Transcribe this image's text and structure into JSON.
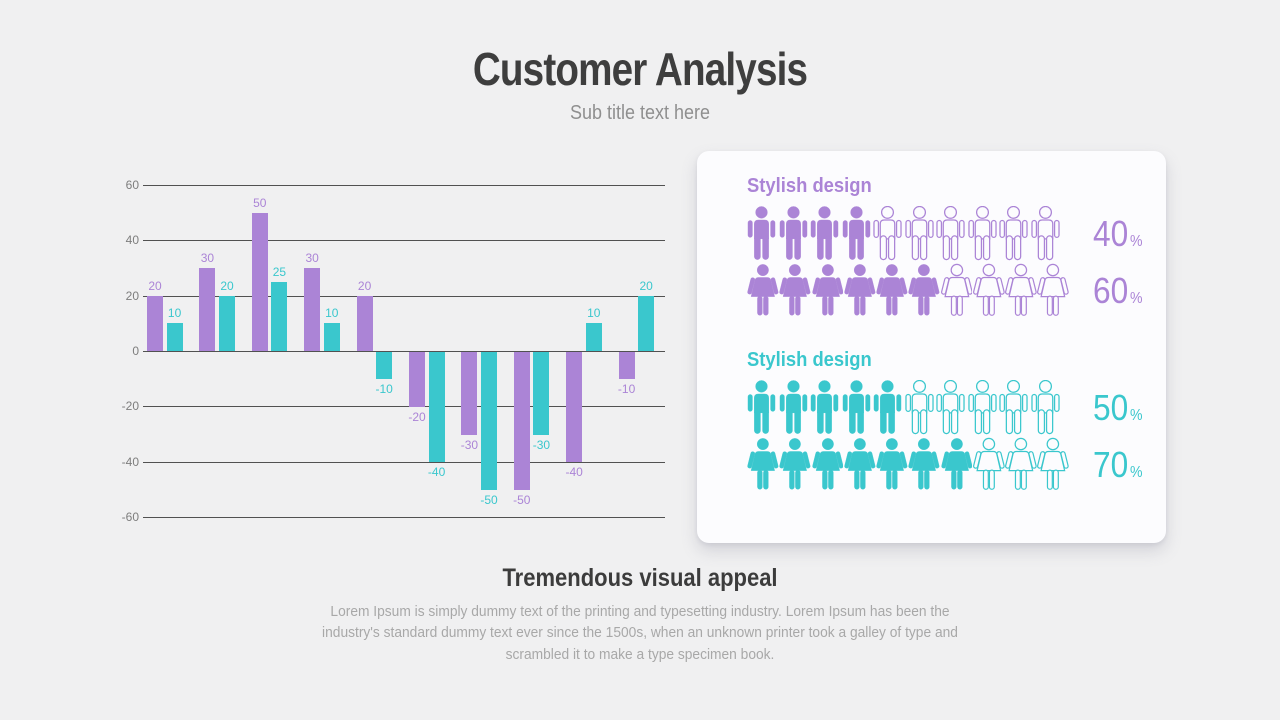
{
  "header": {
    "title": "Customer Analysis",
    "subtitle": "Sub title text here"
  },
  "colors": {
    "purple": "#ab84d6",
    "teal": "#3ac7cd",
    "gridline": "#515151",
    "tick_label": "#7d7d7d",
    "card_bg": "#fcfcfe",
    "slide_bg": "#f0f0f1",
    "title_text": "#3e3e3e",
    "subtitle_text": "#8f8f8f",
    "body_text": "#a8a8a8"
  },
  "chart_data": {
    "type": "bar",
    "title": "",
    "xlabel": "",
    "ylabel": "",
    "ylim": [
      -60,
      60
    ],
    "yticks": [
      60,
      40,
      20,
      0,
      -20,
      -40,
      -60
    ],
    "grid": true,
    "value_labels": true,
    "legend_position": "none",
    "layout": "interleaved-pairs",
    "series": [
      {
        "name": "series-purple",
        "color": "#ab84d6",
        "values": [
          20,
          30,
          50,
          30,
          20,
          -20,
          -30,
          -50,
          -40,
          -10
        ]
      },
      {
        "name": "series-teal",
        "color": "#3ac7cd",
        "values": [
          10,
          20,
          25,
          10,
          -10,
          -40,
          -50,
          -30,
          10,
          20
        ]
      }
    ]
  },
  "panel": {
    "sections": [
      {
        "heading": "Stylish design",
        "color": "#ab84d6",
        "rows": [
          {
            "icon": "male",
            "total": 10,
            "filled": 4,
            "percent": "40",
            "unit": "%"
          },
          {
            "icon": "female",
            "total": 10,
            "filled": 6,
            "percent": "60",
            "unit": "%"
          }
        ]
      },
      {
        "heading": "Stylish design",
        "color": "#3ac7cd",
        "rows": [
          {
            "icon": "male",
            "total": 10,
            "filled": 5,
            "percent": "50",
            "unit": "%"
          },
          {
            "icon": "female",
            "total": 10,
            "filled": 7,
            "percent": "70",
            "unit": "%"
          }
        ]
      }
    ]
  },
  "footer": {
    "heading": "Tremendous visual appeal",
    "body": "Lorem Ipsum is simply dummy text of the printing and typesetting industry. Lorem Ipsum has been the industry's standard dummy text ever since the 1500s, when an unknown printer took a galley of type and scrambled it to make a type specimen book."
  }
}
